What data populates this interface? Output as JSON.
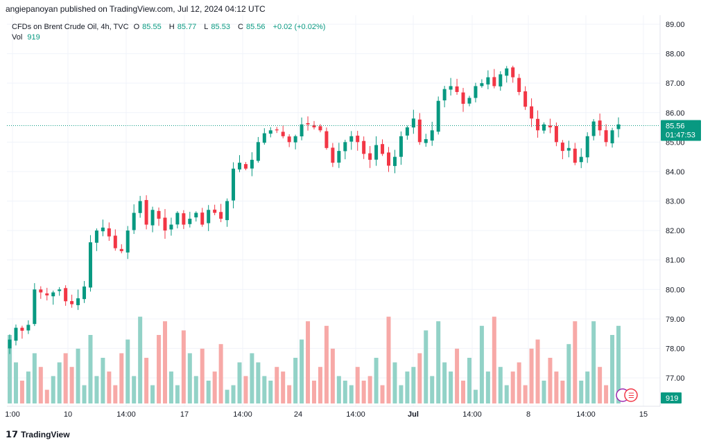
{
  "header": {
    "publisher": "angiepanoyan published on TradingView.com, Jul 12, 2024 04:12 UTC"
  },
  "legend": {
    "symbol": "CFDs on Brent Crude Oil, 4h, TVC",
    "o_label": "O",
    "o": "85.55",
    "h_label": "H",
    "h": "85.77",
    "l_label": "L",
    "l": "85.53",
    "c_label": "C",
    "c": "85.56",
    "change": "+0.02 (+0.02%)",
    "vol_label": "Vol",
    "vol": "919"
  },
  "footer": {
    "brand": "TradingView"
  },
  "colors": {
    "up": "#089981",
    "down": "#f23645",
    "up_vol": "#92d2c7",
    "down_vol": "#f7a9a7",
    "grid": "#f0f3fa",
    "text": "#131722"
  },
  "chart_data": {
    "type": "candlestick",
    "y_ticks": [
      "89.00",
      "88.00",
      "87.00",
      "86.00",
      "85.00",
      "84.00",
      "83.00",
      "82.00",
      "81.00",
      "80.00",
      "79.00",
      "78.00",
      "77.00"
    ],
    "ylim": [
      76.5,
      89.2
    ],
    "x_ticks": [
      "1:00",
      "10",
      "14:00",
      "17",
      "14:00",
      "24",
      "14:00",
      "Jul",
      "14:00",
      "8",
      "14:00",
      "15"
    ],
    "last_price": "85.56",
    "countdown": "01:47:53",
    "last_volume": "919",
    "close_path": [
      78.3,
      78.7,
      78.6,
      78.8,
      80.0,
      79.9,
      79.8,
      79.9,
      80.0,
      79.6,
      79.5,
      79.7,
      80.1,
      81.6,
      82.0,
      82.1,
      81.8,
      81.4,
      81.3,
      82.0,
      82.6,
      83.0,
      82.2,
      82.7,
      82.4,
      82.0,
      82.2,
      82.6,
      82.2,
      82.4,
      82.6,
      82.2,
      82.7,
      82.6,
      82.4,
      83.0,
      84.1,
      84.3,
      84.1,
      84.4,
      85.0,
      85.3,
      85.4,
      85.4,
      85.2,
      85.0,
      85.2,
      85.6,
      85.6,
      85.5,
      85.4,
      84.8,
      84.3,
      84.7,
      85.0,
      85.2,
      85.0,
      84.6,
      84.4,
      84.9,
      84.6,
      84.2,
      84.5,
      85.2,
      85.5,
      85.8,
      85.0,
      85.1,
      85.4,
      86.4,
      86.8,
      86.9,
      86.7,
      86.3,
      86.5,
      86.9,
      87.0,
      87.2,
      86.9,
      87.3,
      87.5,
      87.2,
      86.7,
      86.2,
      85.8,
      85.4,
      85.6,
      85.5,
      85.0,
      84.7,
      84.8,
      84.3,
      84.5,
      85.2,
      85.7,
      85.4,
      85.0,
      85.4,
      85.6
    ],
    "volume_path": [
      0.75,
      0.45,
      0.25,
      0.35,
      0.55,
      0.4,
      0.15,
      0.3,
      0.45,
      0.55,
      0.4,
      0.6,
      0.2,
      0.75,
      0.3,
      0.5,
      0.35,
      0.2,
      0.55,
      0.7,
      0.3,
      0.95,
      0.5,
      0.2,
      0.75,
      0.9,
      0.35,
      0.2,
      0.8,
      0.55,
      0.3,
      0.6,
      0.25,
      0.35,
      0.65,
      0.15,
      0.2,
      0.45,
      0.3,
      0.55,
      0.45,
      0.3,
      0.25,
      0.4,
      0.35,
      0.2,
      0.5,
      0.7,
      0.9,
      0.25,
      0.4,
      0.85,
      0.6,
      0.3,
      0.25,
      0.2,
      0.4,
      0.25,
      0.3,
      0.5,
      0.2,
      0.95,
      0.45,
      0.2,
      0.35,
      0.4,
      0.55,
      0.8,
      0.3,
      0.9,
      0.45,
      0.35,
      0.6,
      0.25,
      0.5,
      0.15,
      0.85,
      0.35,
      0.95,
      0.4,
      0.2,
      0.35,
      0.45,
      0.2,
      0.6,
      0.7,
      0.25,
      0.5,
      0.35,
      0.25,
      0.65,
      0.9,
      0.25,
      0.35,
      0.9,
      0.4,
      0.2,
      0.75,
      0.85
    ]
  }
}
